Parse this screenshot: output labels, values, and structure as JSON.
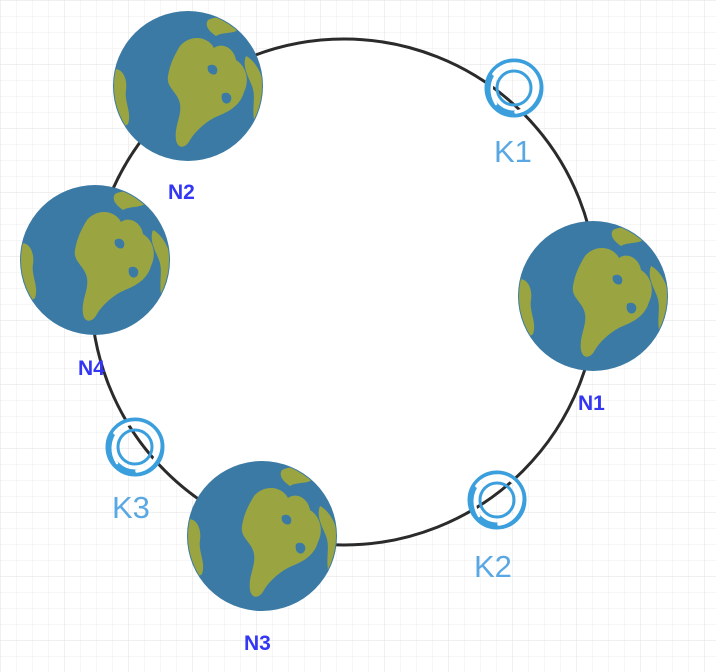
{
  "colors": {
    "grid_minor": "#eeeeee",
    "grid_major": "#e2e2e2",
    "ring": "#2b2b2b",
    "ocean": "#3b7aa4",
    "land": "#9aa542",
    "land_shade": "#8a963a",
    "node_label": "#3336f2",
    "key_ring": "#3a9fdc",
    "key_label": "#5aa8e3"
  },
  "nodes": [
    {
      "id": "N1",
      "label": "N1",
      "icon": "globe-icon"
    },
    {
      "id": "N2",
      "label": "N2",
      "icon": "globe-icon"
    },
    {
      "id": "N3",
      "label": "N3",
      "icon": "globe-icon"
    },
    {
      "id": "N4",
      "label": "N4",
      "icon": "globe-icon"
    }
  ],
  "keys": [
    {
      "id": "K1",
      "label": "K1",
      "icon": "key-ring-icon"
    },
    {
      "id": "K2",
      "label": "K2",
      "icon": "key-ring-icon"
    },
    {
      "id": "K3",
      "label": "K3",
      "icon": "key-ring-icon"
    }
  ]
}
